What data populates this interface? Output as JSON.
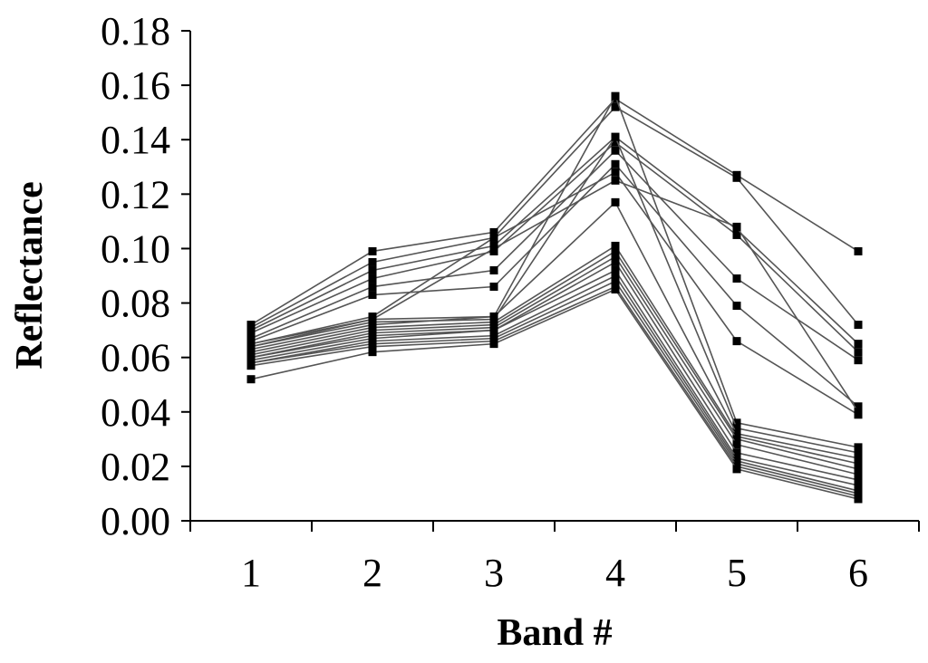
{
  "chart_data": {
    "type": "line",
    "title": "",
    "xlabel": "Band #",
    "ylabel": "Reflectance",
    "categories": [
      "1",
      "2",
      "3",
      "4",
      "5",
      "6"
    ],
    "ylim": [
      0,
      0.18
    ],
    "y_ticks": [
      "0.00",
      "0.02",
      "0.04",
      "0.06",
      "0.08",
      "0.10",
      "0.12",
      "0.14",
      "0.16",
      "0.18"
    ],
    "grid": false,
    "legend": "none",
    "line_color": "#555555",
    "marker_color": "#000000",
    "series": [
      {
        "values": [
          0.072,
          0.099,
          0.106,
          0.155,
          0.127,
          0.099
        ]
      },
      {
        "values": [
          0.071,
          0.095,
          0.104,
          0.152,
          0.126,
          0.072
        ]
      },
      {
        "values": [
          0.07,
          0.092,
          0.101,
          0.141,
          0.107,
          0.065
        ]
      },
      {
        "values": [
          0.069,
          0.089,
          0.099,
          0.139,
          0.105,
          0.062
        ]
      },
      {
        "values": [
          0.067,
          0.086,
          0.092,
          0.136,
          0.089,
          0.059
        ]
      },
      {
        "values": [
          0.066,
          0.083,
          0.086,
          0.131,
          0.079,
          0.042
        ]
      },
      {
        "values": [
          0.065,
          0.075,
          0.104,
          0.128,
          0.066,
          0.039
        ]
      },
      {
        "values": [
          0.064,
          0.074,
          0.1,
          0.125,
          0.108,
          0.04
        ]
      },
      {
        "values": [
          0.065,
          0.074,
          0.075,
          0.156,
          0.036,
          0.027
        ]
      },
      {
        "values": [
          0.064,
          0.073,
          0.074,
          0.141,
          0.034,
          0.025
        ]
      },
      {
        "values": [
          0.063,
          0.072,
          0.075,
          0.117,
          0.032,
          0.023
        ]
      },
      {
        "values": [
          0.062,
          0.071,
          0.073,
          0.101,
          0.031,
          0.021
        ]
      },
      {
        "values": [
          0.061,
          0.07,
          0.072,
          0.099,
          0.03,
          0.019
        ]
      },
      {
        "values": [
          0.06,
          0.069,
          0.071,
          0.097,
          0.028,
          0.017
        ]
      },
      {
        "values": [
          0.06,
          0.068,
          0.07,
          0.095,
          0.025,
          0.015
        ]
      },
      {
        "values": [
          0.059,
          0.067,
          0.07,
          0.092,
          0.023,
          0.013
        ]
      },
      {
        "values": [
          0.058,
          0.066,
          0.068,
          0.09,
          0.022,
          0.011
        ]
      },
      {
        "values": [
          0.058,
          0.065,
          0.067,
          0.088,
          0.021,
          0.01
        ]
      },
      {
        "values": [
          0.057,
          0.064,
          0.066,
          0.086,
          0.02,
          0.009
        ]
      },
      {
        "values": [
          0.052,
          0.062,
          0.065,
          0.085,
          0.019,
          0.008
        ]
      }
    ]
  }
}
